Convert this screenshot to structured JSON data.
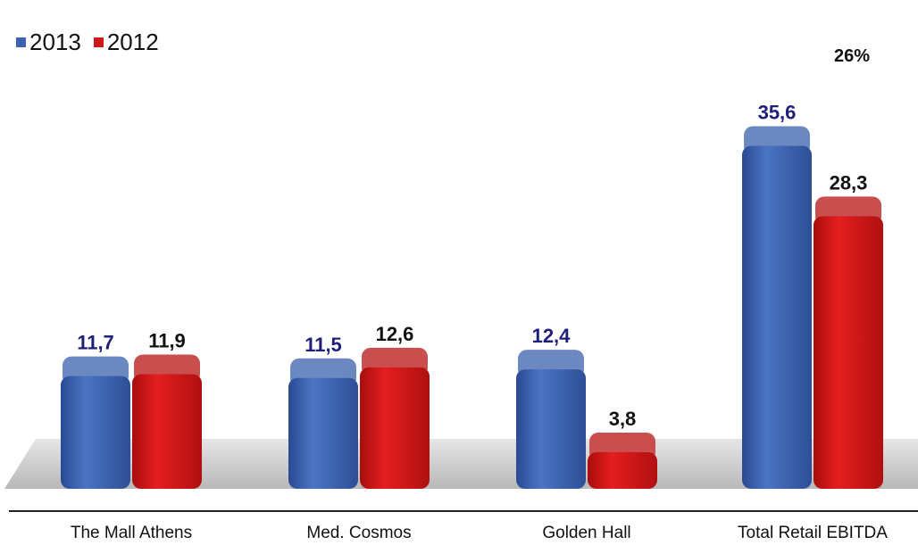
{
  "chart_data": {
    "type": "bar",
    "categories": [
      "The Mall Athens",
      "Med. Cosmos",
      "Golden Hall",
      "Total Retail EBITDA"
    ],
    "series": [
      {
        "name": "2013",
        "values": [
          11.7,
          11.5,
          12.4,
          35.6
        ],
        "labels": [
          "11,7",
          "11,5",
          "12,4",
          "35,6"
        ],
        "color": "#3d63b0",
        "label_color": "#1f1f7a"
      },
      {
        "name": "2012",
        "values": [
          11.9,
          12.6,
          3.8,
          28.3
        ],
        "labels": [
          "11,9",
          "12,6",
          "3,8",
          "28,3"
        ],
        "color": "#d01818",
        "label_color": "#111111"
      }
    ],
    "annotation": "26%",
    "ylim": [
      0,
      40
    ],
    "grid": false,
    "legend_position": "top-left",
    "floor_color": "#c8c8c8"
  }
}
